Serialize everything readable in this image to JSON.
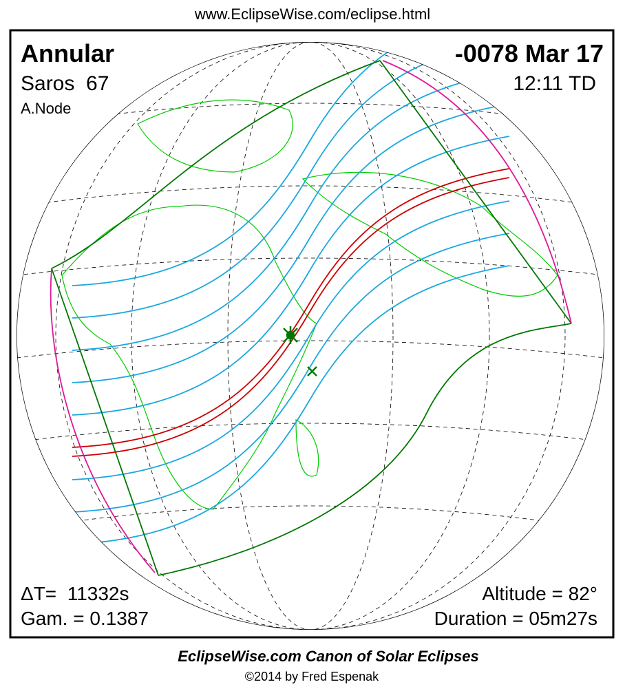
{
  "header": {
    "url": "www.EclipseWise.com/eclipse.html"
  },
  "eclipse": {
    "type": "Annular",
    "saros": "Saros  67",
    "node": "A.Node",
    "date": "-0078 Mar 17",
    "time": "12:11 TD",
    "delta_t": "ΔT=  11332s",
    "gamma": "Gam. = 0.1387",
    "altitude": "Altitude = 82°",
    "duration": "Duration = 05m27s"
  },
  "footer": {
    "title": "EclipseWise.com Canon of Solar Eclipses",
    "copyright": "©2014 by Fred Espenak"
  }
}
